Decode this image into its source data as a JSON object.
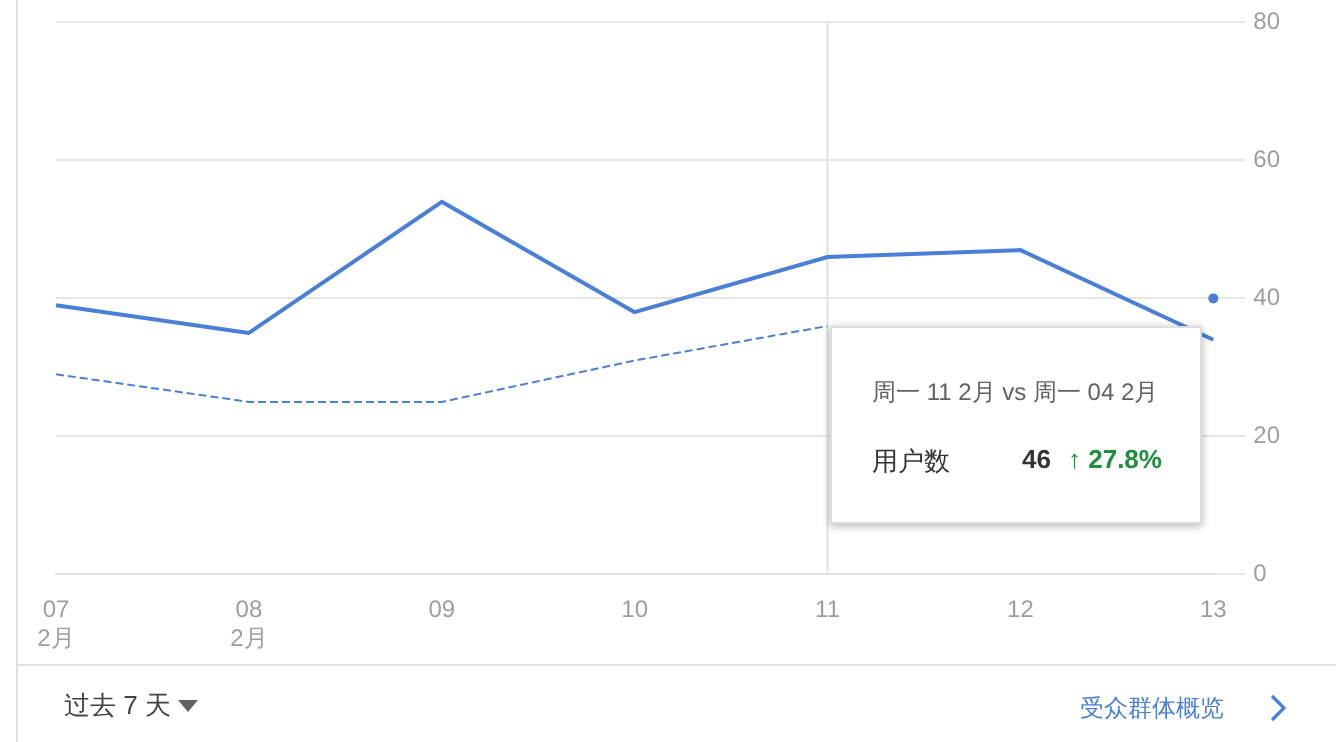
{
  "chart_data": {
    "type": "line",
    "categories": [
      "07\n2月",
      "08\n2月",
      "09",
      "10",
      "11",
      "12",
      "13"
    ],
    "series": [
      {
        "color": "#4a7fd6",
        "values": [
          39,
          35,
          54,
          38,
          46,
          47,
          34
        ],
        "line_style": "solid"
      },
      {
        "color": "#4a7fd6",
        "values": [
          29,
          25,
          25,
          31,
          36,
          null,
          40
        ],
        "line_style": "dashed"
      }
    ],
    "ylim": [
      0,
      80
    ],
    "yticks": [
      0,
      20,
      40,
      60,
      80
    ],
    "grid": "y",
    "legend": false,
    "marker": "none",
    "ref_lines": [
      {
        "axis": "x",
        "value": "11",
        "color": "#e0e0e0"
      }
    ],
    "annotations": [
      "周一 11 2月 vs 周一 04 2月",
      "用户数",
      "46",
      "↑ 27.8%",
      "过去 7 天",
      "受众群体概览"
    ]
  }
}
